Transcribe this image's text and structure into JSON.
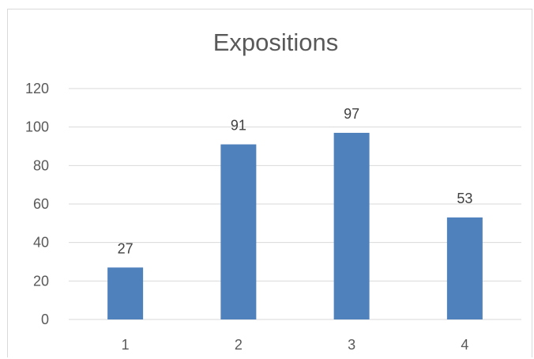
{
  "chart_data": {
    "type": "bar",
    "title": "Expositions",
    "categories": [
      "1",
      "2",
      "3",
      "4"
    ],
    "values": [
      27,
      91,
      97,
      53
    ],
    "data_labels": [
      "27",
      "91",
      "97",
      "53"
    ],
    "ylim": [
      0,
      120
    ],
    "yticks": [
      0,
      20,
      40,
      60,
      80,
      100,
      120
    ],
    "ytick_labels": [
      "0",
      "20",
      "40",
      "60",
      "80",
      "100",
      "120"
    ],
    "grid": true,
    "legend": "none",
    "bar_color": "#4f81bd",
    "grid_color": "#d9d9d9"
  }
}
